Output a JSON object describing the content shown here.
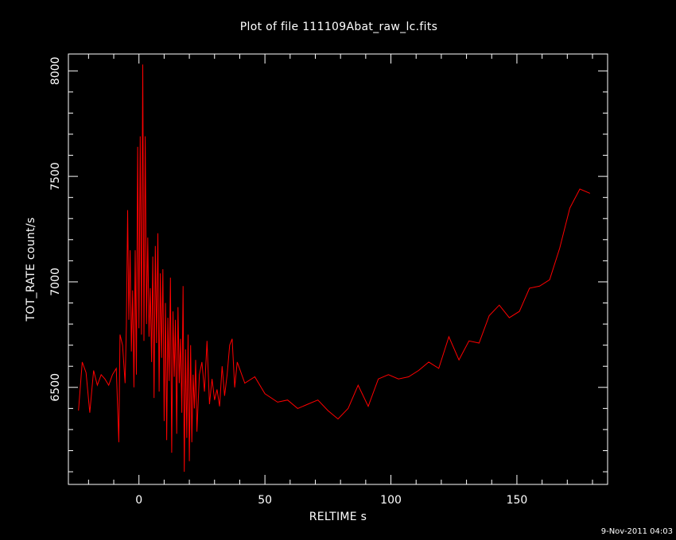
{
  "chart_data": {
    "type": "line",
    "title": "Plot of file 111109Abat_raw_lc.fits",
    "xlabel": "RELTIME  s",
    "ylabel": "TOT_RATE  count/s",
    "timestamp": "9-Nov-2011 04:03",
    "xlim": [
      -28,
      186
    ],
    "ylim": [
      6040,
      8080
    ],
    "x_ticks": [
      0,
      50,
      100,
      150
    ],
    "x_tick_labels": [
      "0",
      "50",
      "100",
      "150"
    ],
    "y_ticks": [
      6500,
      7000,
      7500,
      8000
    ],
    "y_tick_labels": [
      "6500",
      "7000",
      "7500",
      "8000"
    ],
    "x_minor_step": 10,
    "y_minor_step": 100,
    "colors": {
      "background": "#000000",
      "axes": "#ffffff",
      "series": "#ff0000"
    },
    "grid": false,
    "series": [
      {
        "color": "#ff0000",
        "points": [
          [
            -24,
            6390
          ],
          [
            -22.5,
            6620
          ],
          [
            -21,
            6570
          ],
          [
            -19.5,
            6380
          ],
          [
            -18,
            6580
          ],
          [
            -16.5,
            6510
          ],
          [
            -15,
            6560
          ],
          [
            -13.5,
            6540
          ],
          [
            -12,
            6510
          ],
          [
            -10.5,
            6560
          ],
          [
            -9,
            6590
          ],
          [
            -8,
            6240
          ],
          [
            -7.5,
            6750
          ],
          [
            -6.5,
            6700
          ],
          [
            -5.5,
            6520
          ],
          [
            -5,
            6790
          ],
          [
            -4.5,
            7340
          ],
          [
            -4,
            6820
          ],
          [
            -3.5,
            7150
          ],
          [
            -3,
            6670
          ],
          [
            -2.5,
            6960
          ],
          [
            -2,
            6500
          ],
          [
            -1.5,
            7150
          ],
          [
            -1,
            6560
          ],
          [
            -0.5,
            7640
          ],
          [
            0,
            6780
          ],
          [
            0.5,
            7690
          ],
          [
            1,
            6750
          ],
          [
            1.5,
            8030
          ],
          [
            2,
            6720
          ],
          [
            2.5,
            7690
          ],
          [
            3,
            6800
          ],
          [
            3.5,
            7210
          ],
          [
            4,
            6740
          ],
          [
            4.5,
            6970
          ],
          [
            5,
            6620
          ],
          [
            5.5,
            7120
          ],
          [
            6,
            6450
          ],
          [
            6.5,
            7170
          ],
          [
            7,
            6710
          ],
          [
            7.5,
            7230
          ],
          [
            8,
            6480
          ],
          [
            8.5,
            7040
          ],
          [
            9,
            6640
          ],
          [
            9.5,
            7060
          ],
          [
            10,
            6340
          ],
          [
            10.5,
            6900
          ],
          [
            11,
            6250
          ],
          [
            11.5,
            6830
          ],
          [
            12,
            6530
          ],
          [
            12.5,
            7020
          ],
          [
            13,
            6190
          ],
          [
            13.5,
            6860
          ],
          [
            14,
            6550
          ],
          [
            14.5,
            6820
          ],
          [
            15,
            6280
          ],
          [
            15.5,
            6880
          ],
          [
            16,
            6520
          ],
          [
            16.5,
            6730
          ],
          [
            17,
            6380
          ],
          [
            17.5,
            6980
          ],
          [
            18,
            6100
          ],
          [
            18.5,
            6680
          ],
          [
            19,
            6260
          ],
          [
            19.5,
            6750
          ],
          [
            20,
            6150
          ],
          [
            20.5,
            6700
          ],
          [
            21,
            6240
          ],
          [
            21.5,
            6560
          ],
          [
            22,
            6400
          ],
          [
            22.5,
            6630
          ],
          [
            23,
            6290
          ],
          [
            24,
            6560
          ],
          [
            25,
            6620
          ],
          [
            26,
            6480
          ],
          [
            27,
            6720
          ],
          [
            28,
            6420
          ],
          [
            29,
            6540
          ],
          [
            30,
            6440
          ],
          [
            31,
            6490
          ],
          [
            32,
            6410
          ],
          [
            33,
            6600
          ],
          [
            34,
            6460
          ],
          [
            35,
            6560
          ],
          [
            36,
            6700
          ],
          [
            37,
            6730
          ],
          [
            38,
            6500
          ],
          [
            39,
            6620
          ],
          [
            42,
            6520
          ],
          [
            46,
            6550
          ],
          [
            50,
            6470
          ],
          [
            55,
            6430
          ],
          [
            59,
            6440
          ],
          [
            63,
            6400
          ],
          [
            67,
            6420
          ],
          [
            71,
            6440
          ],
          [
            75,
            6390
          ],
          [
            79,
            6350
          ],
          [
            83,
            6400
          ],
          [
            87,
            6510
          ],
          [
            91,
            6410
          ],
          [
            95,
            6540
          ],
          [
            99,
            6560
          ],
          [
            103,
            6540
          ],
          [
            107,
            6550
          ],
          [
            111,
            6580
          ],
          [
            115,
            6620
          ],
          [
            119,
            6590
          ],
          [
            123,
            6740
          ],
          [
            127,
            6630
          ],
          [
            131,
            6720
          ],
          [
            135,
            6710
          ],
          [
            139,
            6840
          ],
          [
            143,
            6890
          ],
          [
            147,
            6830
          ],
          [
            151,
            6860
          ],
          [
            155,
            6970
          ],
          [
            159,
            6980
          ],
          [
            163,
            7010
          ],
          [
            167,
            7160
          ],
          [
            171,
            7350
          ],
          [
            175,
            7440
          ],
          [
            179,
            7420
          ]
        ]
      }
    ]
  }
}
